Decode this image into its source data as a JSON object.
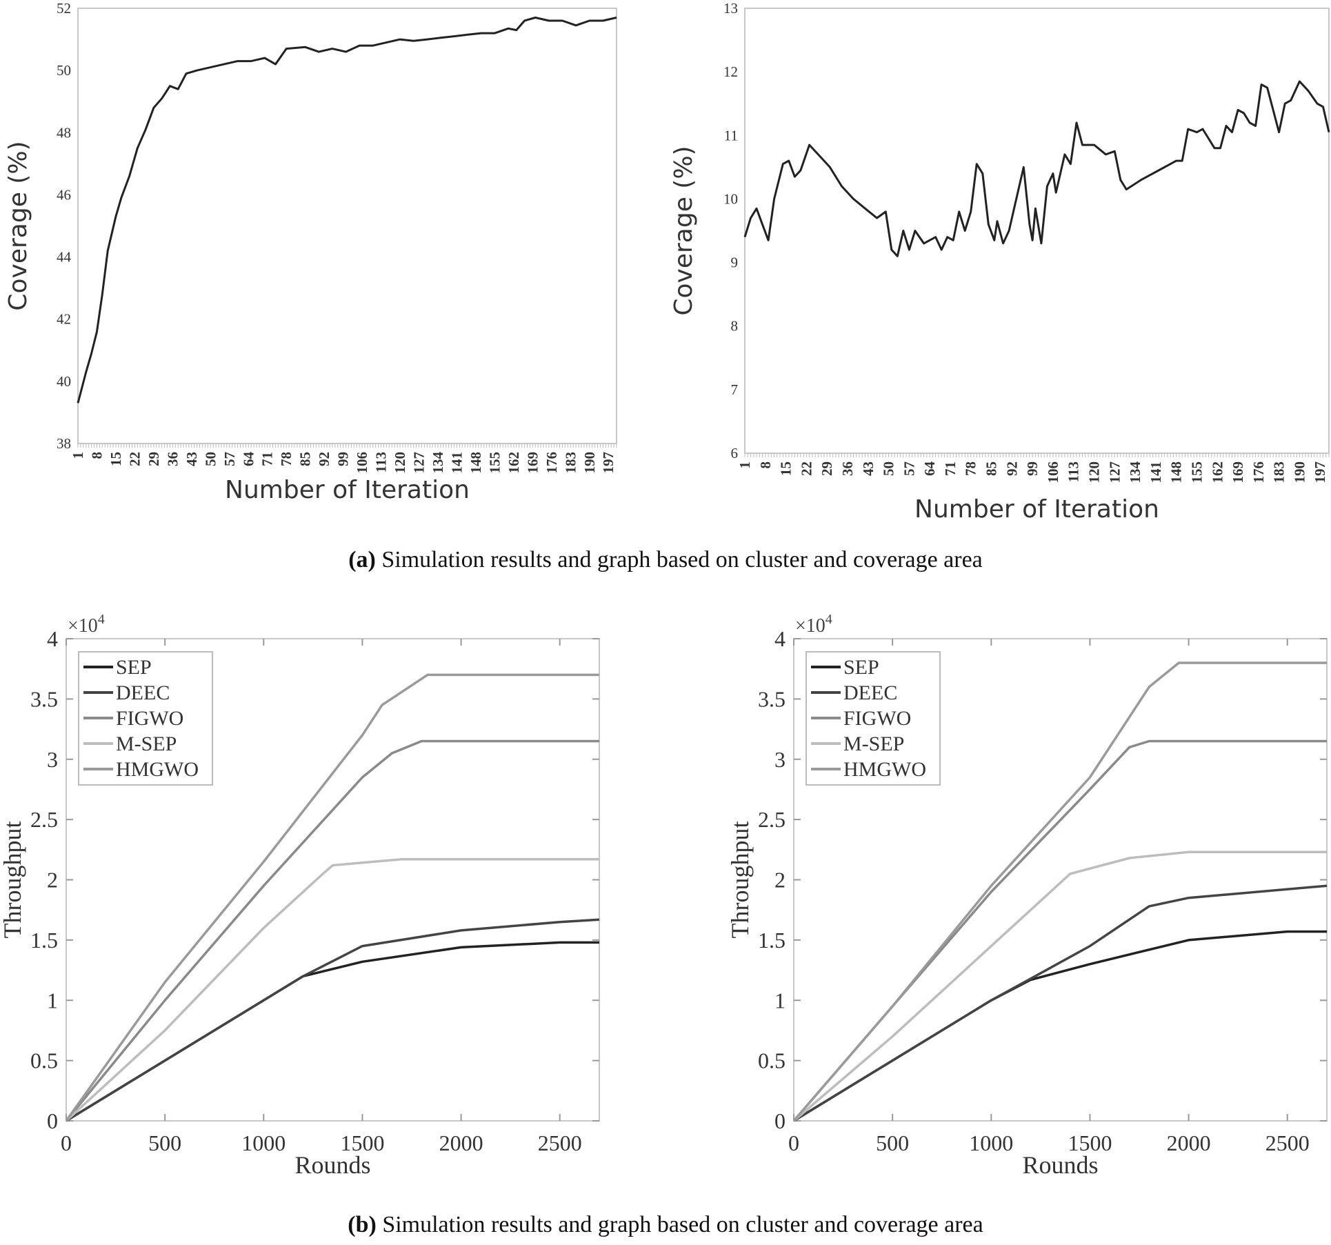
{
  "captions": {
    "a_label": "(a)",
    "a_text": "Simulation results and graph based on cluster and coverage area",
    "b_label": "(b)",
    "b_text": "Simulation results and graph based on cluster and coverage area"
  },
  "chart_data": [
    {
      "type": "line",
      "xlabel": "Number of Iteration",
      "ylabel": "Coverage (%)",
      "ylim": [
        38,
        52
      ],
      "yticks": [
        "38",
        "40",
        "42",
        "44",
        "46",
        "48",
        "50",
        "52"
      ],
      "xlim": [
        1,
        200
      ],
      "xticks": [
        "1",
        "8",
        "15",
        "22",
        "29",
        "36",
        "43",
        "50",
        "57",
        "64",
        "71",
        "78",
        "85",
        "92",
        "99",
        "106",
        "113",
        "120",
        "127",
        "134",
        "141",
        "148",
        "155",
        "162",
        "169",
        "176",
        "183",
        "190",
        "197"
      ],
      "grid": false,
      "series": [
        {
          "color": "#222222",
          "x": [
            1,
            4,
            6,
            8,
            10,
            12,
            15,
            17,
            20,
            23,
            26,
            29,
            32,
            35,
            38,
            41,
            45,
            50,
            55,
            60,
            65,
            70,
            74,
            78,
            85,
            90,
            95,
            100,
            105,
            110,
            115,
            120,
            125,
            130,
            135,
            140,
            145,
            150,
            155,
            160,
            163,
            166,
            170,
            175,
            180,
            185,
            190,
            195,
            200
          ],
          "y": [
            39.3,
            40.3,
            40.9,
            41.6,
            42.8,
            44.2,
            45.3,
            45.9,
            46.6,
            47.5,
            48.1,
            48.8,
            49.1,
            49.5,
            49.4,
            49.9,
            50.0,
            50.1,
            50.2,
            50.3,
            50.3,
            50.4,
            50.2,
            50.7,
            50.75,
            50.6,
            50.7,
            50.6,
            50.8,
            50.8,
            50.9,
            51.0,
            50.95,
            51.0,
            51.05,
            51.1,
            51.15,
            51.2,
            51.2,
            51.35,
            51.3,
            51.6,
            51.7,
            51.6,
            51.6,
            51.45,
            51.6,
            51.6,
            51.7
          ]
        }
      ]
    },
    {
      "type": "line",
      "xlabel": "Number of Iteration",
      "ylabel": "Coverage (%)",
      "ylim": [
        6,
        13
      ],
      "yticks": [
        "6",
        "7",
        "8",
        "9",
        "10",
        "11",
        "12",
        "13"
      ],
      "xlim": [
        1,
        200
      ],
      "xticks": [
        "1",
        "8",
        "15",
        "22",
        "29",
        "36",
        "43",
        "50",
        "57",
        "64",
        "71",
        "78",
        "85",
        "92",
        "99",
        "106",
        "113",
        "120",
        "127",
        "134",
        "141",
        "148",
        "155",
        "162",
        "169",
        "176",
        "183",
        "190",
        "197"
      ],
      "grid": false,
      "series": [
        {
          "color": "#222222",
          "x": [
            1,
            3,
            5,
            7,
            9,
            11,
            14,
            16,
            18,
            20,
            23,
            26,
            30,
            34,
            38,
            42,
            46,
            49,
            51,
            53,
            55,
            57,
            59,
            62,
            66,
            68,
            70,
            72,
            74,
            76,
            78,
            80,
            82,
            84,
            86,
            87,
            89,
            91,
            94,
            96,
            98,
            99,
            100,
            102,
            104,
            106,
            107,
            110,
            112,
            114,
            116,
            120,
            124,
            127,
            129,
            131,
            136,
            142,
            148,
            150,
            152,
            155,
            157,
            159,
            161,
            163,
            165,
            167,
            169,
            171,
            173,
            175,
            177,
            179,
            181,
            183,
            185,
            187,
            190,
            193,
            196,
            198,
            200
          ],
          "y": [
            9.4,
            9.7,
            9.85,
            9.6,
            9.35,
            10.0,
            10.55,
            10.6,
            10.35,
            10.45,
            10.85,
            10.7,
            10.5,
            10.2,
            10.0,
            9.85,
            9.7,
            9.8,
            9.2,
            9.1,
            9.5,
            9.2,
            9.5,
            9.3,
            9.4,
            9.2,
            9.4,
            9.35,
            9.8,
            9.5,
            9.8,
            10.55,
            10.4,
            9.6,
            9.35,
            9.65,
            9.3,
            9.5,
            10.1,
            10.5,
            9.6,
            9.35,
            9.85,
            9.3,
            10.2,
            10.4,
            10.1,
            10.7,
            10.55,
            11.2,
            10.85,
            10.85,
            10.7,
            10.75,
            10.3,
            10.15,
            10.3,
            10.45,
            10.6,
            10.6,
            11.1,
            11.05,
            11.1,
            10.95,
            10.8,
            10.8,
            11.15,
            11.05,
            11.4,
            11.35,
            11.2,
            11.15,
            11.8,
            11.75,
            11.4,
            11.05,
            11.5,
            11.55,
            11.85,
            11.7,
            11.5,
            11.45,
            11.05
          ]
        }
      ]
    },
    {
      "type": "line",
      "xlabel": "Rounds",
      "ylabel": "Throughput",
      "y_multiplier": "×10",
      "y_multiplier_exp": "4",
      "xlim": [
        0,
        2700
      ],
      "ylim": [
        0,
        4
      ],
      "xticks": [
        "0",
        "500",
        "1000",
        "1500",
        "2000",
        "2500"
      ],
      "yticks": [
        "0",
        "0.5",
        "1",
        "1.5",
        "2",
        "2.5",
        "3",
        "3.5",
        "4"
      ],
      "grid": false,
      "legend_position": "top-left",
      "series": [
        {
          "name": "SEP",
          "color": "#222222",
          "x": [
            0,
            500,
            1000,
            1200,
            1500,
            2000,
            2500,
            2700
          ],
          "y": [
            0,
            0.5,
            1.0,
            1.2,
            1.32,
            1.44,
            1.48,
            1.48
          ]
        },
        {
          "name": "DEEC",
          "color": "#444444",
          "x": [
            0,
            500,
            1000,
            1200,
            1500,
            2000,
            2500,
            2700
          ],
          "y": [
            0,
            0.5,
            1.0,
            1.2,
            1.45,
            1.58,
            1.65,
            1.67
          ]
        },
        {
          "name": "FIGWO",
          "color": "#8a8a8a",
          "x": [
            0,
            500,
            1000,
            1500,
            1650,
            1800,
            2700
          ],
          "y": [
            0,
            1.0,
            1.95,
            2.85,
            3.05,
            3.15,
            3.15
          ]
        },
        {
          "name": "M-SEP",
          "color": "#bdbdbd",
          "x": [
            0,
            500,
            1000,
            1300,
            1350,
            1700,
            2700
          ],
          "y": [
            0,
            0.75,
            1.6,
            2.05,
            2.12,
            2.17,
            2.17
          ]
        },
        {
          "name": "HMGWO",
          "color": "#9a9a9a",
          "x": [
            0,
            500,
            1000,
            1500,
            1600,
            1830,
            2700
          ],
          "y": [
            0,
            1.15,
            2.15,
            3.2,
            3.45,
            3.7,
            3.7
          ]
        }
      ]
    },
    {
      "type": "line",
      "xlabel": "Rounds",
      "ylabel": "Throughput",
      "y_multiplier": "×10",
      "y_multiplier_exp": "4",
      "xlim": [
        0,
        2700
      ],
      "ylim": [
        0,
        4
      ],
      "xticks": [
        "0",
        "500",
        "1000",
        "1500",
        "2000",
        "2500"
      ],
      "yticks": [
        "0",
        "0.5",
        "1",
        "1.5",
        "2",
        "2.5",
        "3",
        "3.5",
        "4"
      ],
      "grid": false,
      "legend_position": "top-left",
      "series": [
        {
          "name": "SEP",
          "color": "#222222",
          "x": [
            0,
            500,
            1000,
            1200,
            1500,
            2000,
            2500,
            2700
          ],
          "y": [
            0,
            0.5,
            1.0,
            1.17,
            1.3,
            1.5,
            1.57,
            1.57
          ]
        },
        {
          "name": "DEEC",
          "color": "#444444",
          "x": [
            0,
            500,
            1000,
            1500,
            1800,
            2000,
            2700
          ],
          "y": [
            0,
            0.5,
            1.0,
            1.45,
            1.78,
            1.85,
            1.95
          ]
        },
        {
          "name": "FIGWO",
          "color": "#8a8a8a",
          "x": [
            0,
            500,
            1000,
            1500,
            1700,
            1800,
            2700
          ],
          "y": [
            0,
            0.95,
            1.9,
            2.75,
            3.1,
            3.15,
            3.15
          ]
        },
        {
          "name": "M-SEP",
          "color": "#bdbdbd",
          "x": [
            0,
            500,
            1000,
            1400,
            1700,
            2000,
            2700
          ],
          "y": [
            0,
            0.7,
            1.45,
            2.05,
            2.18,
            2.23,
            2.23
          ]
        },
        {
          "name": "HMGWO",
          "color": "#9a9a9a",
          "x": [
            0,
            500,
            1000,
            1500,
            1800,
            1950,
            2700
          ],
          "y": [
            0,
            0.95,
            1.95,
            2.85,
            3.6,
            3.8,
            3.8
          ]
        }
      ]
    }
  ]
}
